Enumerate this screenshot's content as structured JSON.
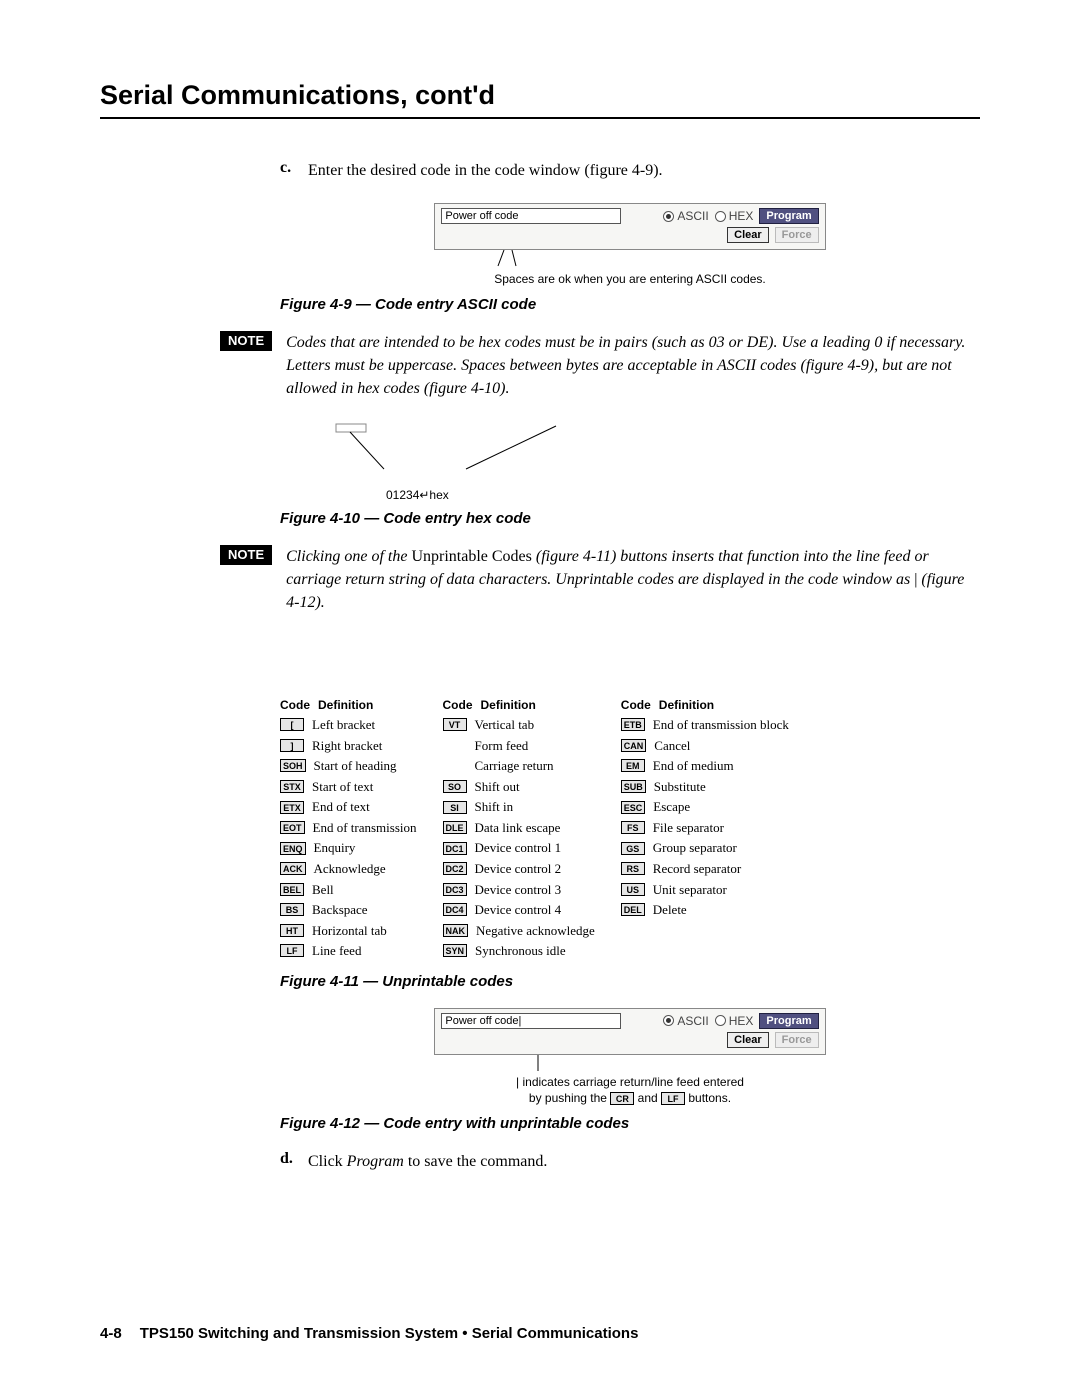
{
  "page_title": "Serial Communications, cont'd",
  "step_c": {
    "letter": "c.",
    "text": "Enter the desired code in the code window (figure 4-9)."
  },
  "fig9": {
    "input_value": "Power off code",
    "radio_ascii": "ASCII",
    "radio_hex": "HEX",
    "btn_program": "Program",
    "btn_clear": "Clear",
    "btn_force": "Force",
    "callout": "Spaces are ok when you are entering ASCII codes.",
    "caption": "Figure 4-9 — Code entry ASCII code"
  },
  "note1": {
    "label": "NOTE",
    "text": "Codes that are intended to be hex codes must be in pairs (such as 03 or DE). Use a leading 0 if necessary. Letters must be uppercase. Spaces between bytes are acceptable in ASCII codes (figure 4-9), but are not allowed in hex codes (figure 4-10)."
  },
  "fig10": {
    "hex_text": "01234↵hex",
    "caption": "Figure 4-10 — Code entry hex code"
  },
  "note2": {
    "label": "NOTE",
    "pre": "Clicking one of the ",
    "mid_upright": "Unprintable Codes ",
    "mid2": "(figure 4-11) buttons inserts that function into the line feed or carriage return string of data characters. Unprintable codes are displayed in the code window as ",
    "pipe": "|",
    "post": " (figure 4-12)."
  },
  "codes_header": {
    "code": "Code",
    "def": "Definition"
  },
  "codes_col1": [
    {
      "code": "[",
      "def": "Left bracket"
    },
    {
      "code": "]",
      "def": "Right bracket"
    },
    {
      "code": "SOH",
      "def": "Start of heading"
    },
    {
      "code": "STX",
      "def": "Start of text"
    },
    {
      "code": "ETX",
      "def": "End of text"
    },
    {
      "code": "EOT",
      "def": "End of transmission"
    },
    {
      "code": "ENQ",
      "def": "Enquiry"
    },
    {
      "code": "ACK",
      "def": "Acknowledge"
    },
    {
      "code": "BEL",
      "def": "Bell"
    },
    {
      "code": "BS",
      "def": "Backspace"
    },
    {
      "code": "HT",
      "def": "Horizontal tab"
    },
    {
      "code": "LF",
      "def": "Line feed"
    }
  ],
  "codes_col2": [
    {
      "code": "VT",
      "def": "Vertical tab"
    },
    {
      "code": "",
      "def": "Form feed"
    },
    {
      "code": "",
      "def": "Carriage return"
    },
    {
      "code": "SO",
      "def": "Shift out"
    },
    {
      "code": "SI",
      "def": "Shift in"
    },
    {
      "code": "DLE",
      "def": "Data link escape"
    },
    {
      "code": "DC1",
      "def": "Device control 1"
    },
    {
      "code": "DC2",
      "def": "Device control 2"
    },
    {
      "code": "DC3",
      "def": "Device control 3"
    },
    {
      "code": "DC4",
      "def": "Device control 4"
    },
    {
      "code": "NAK",
      "def": "Negative acknowledge"
    },
    {
      "code": "SYN",
      "def": "Synchronous idle"
    }
  ],
  "codes_col3": [
    {
      "code": "ETB",
      "def": "End of transmission block"
    },
    {
      "code": "CAN",
      "def": "Cancel"
    },
    {
      "code": "EM",
      "def": "End of medium"
    },
    {
      "code": "SUB",
      "def": "Substitute"
    },
    {
      "code": "ESC",
      "def": "Escape"
    },
    {
      "code": "FS",
      "def": "File separator"
    },
    {
      "code": "GS",
      "def": "Group separator"
    },
    {
      "code": "RS",
      "def": "Record separator"
    },
    {
      "code": "US",
      "def": "Unit separator"
    },
    {
      "code": "DEL",
      "def": "Delete"
    }
  ],
  "fig11_caption": "Figure 4-11 — Unprintable codes",
  "fig12": {
    "input_value": "Power off code|",
    "radio_ascii": "ASCII",
    "radio_hex": "HEX",
    "btn_program": "Program",
    "btn_clear": "Clear",
    "btn_force": "Force",
    "callout1": "| indicates carriage return/line feed entered",
    "callout2a": "by pushing the ",
    "chip_cr": "CR",
    "callout2b": " and ",
    "chip_lf": "LF",
    "callout2c": " buttons.",
    "caption": "Figure 4-12 — Code entry with unprintable codes"
  },
  "step_d": {
    "letter": "d.",
    "pre": "Click ",
    "em": "Program",
    "post": " to save the command."
  },
  "footer": {
    "pagenum": "4-8",
    "text": "TPS150 Switching and Transmission System • Serial Communications"
  }
}
